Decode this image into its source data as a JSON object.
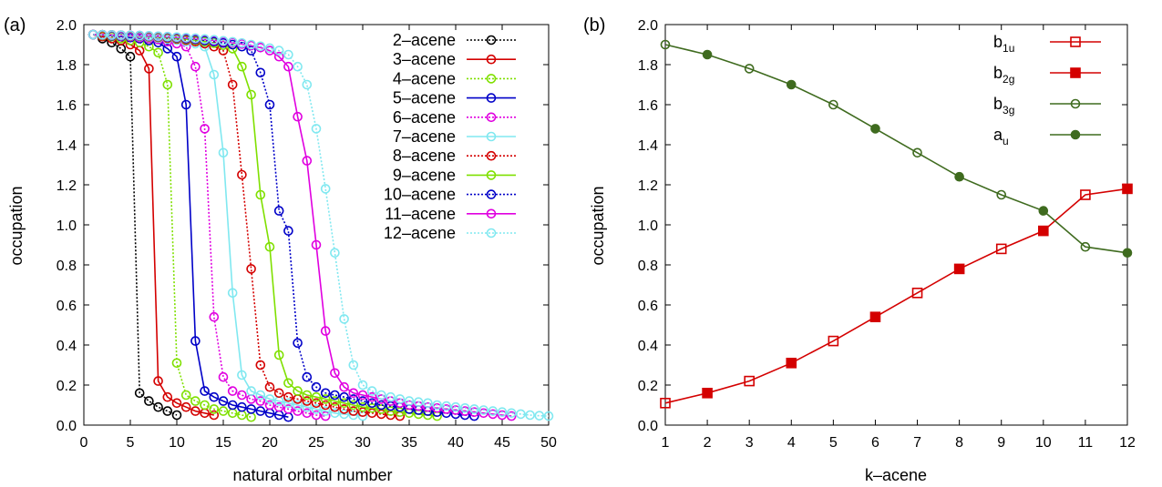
{
  "chart_data": [
    {
      "panel_label": "(a)",
      "type": "line",
      "xlabel": "natural orbital number",
      "ylabel": "occupation",
      "xlim": [
        0,
        50
      ],
      "ylim": [
        0.0,
        2.0
      ],
      "xticks": [
        "0",
        "5",
        "10",
        "15",
        "20",
        "25",
        "30",
        "35",
        "40",
        "45",
        "50"
      ],
      "yticks": [
        "0.0",
        "0.2",
        "0.4",
        "0.6",
        "0.8",
        "1.0",
        "1.2",
        "1.4",
        "1.6",
        "1.8",
        "2.0"
      ],
      "grid": false,
      "legend": "top-right",
      "marker": "open-circle",
      "series": [
        {
          "name": "2–acene",
          "color": "#000000",
          "dash": true,
          "x": [
            1,
            2,
            3,
            4,
            5,
            6,
            7,
            8,
            9,
            10
          ],
          "y": [
            1.95,
            1.93,
            1.91,
            1.88,
            1.84,
            0.16,
            0.12,
            0.09,
            0.07,
            0.05
          ]
        },
        {
          "name": "3–acene",
          "color": "#d40000",
          "dash": false,
          "x": [
            1,
            2,
            3,
            4,
            5,
            6,
            7,
            8,
            9,
            10,
            11,
            12,
            13,
            14
          ],
          "y": [
            1.95,
            1.94,
            1.93,
            1.92,
            1.9,
            1.87,
            1.78,
            0.22,
            0.14,
            0.11,
            0.09,
            0.07,
            0.06,
            0.05
          ]
        },
        {
          "name": "4–acene",
          "color": "#7fe000",
          "dash": true,
          "x": [
            1,
            2,
            3,
            4,
            5,
            6,
            7,
            8,
            9,
            10,
            11,
            12,
            13,
            14,
            15,
            16,
            17,
            18
          ],
          "y": [
            1.95,
            1.945,
            1.94,
            1.93,
            1.92,
            1.91,
            1.89,
            1.86,
            1.7,
            0.31,
            0.15,
            0.12,
            0.1,
            0.08,
            0.07,
            0.06,
            0.05,
            0.04
          ]
        },
        {
          "name": "5–acene",
          "color": "#0000c8",
          "dash": false,
          "x": [
            1,
            2,
            3,
            4,
            5,
            6,
            7,
            8,
            9,
            10,
            11,
            12,
            13,
            14,
            15,
            16,
            17,
            18,
            19,
            20,
            21,
            22
          ],
          "y": [
            1.95,
            1.948,
            1.944,
            1.94,
            1.935,
            1.93,
            1.92,
            1.91,
            1.88,
            1.84,
            1.6,
            0.42,
            0.17,
            0.14,
            0.12,
            0.1,
            0.09,
            0.08,
            0.07,
            0.06,
            0.05,
            0.04
          ]
        },
        {
          "name": "6–acene",
          "color": "#e000e0",
          "dash": true,
          "x": [
            1,
            2,
            3,
            4,
            5,
            6,
            7,
            8,
            9,
            10,
            11,
            12,
            13,
            14,
            15,
            16,
            17,
            18,
            19,
            20,
            21,
            22,
            23,
            24,
            25,
            26
          ],
          "y": [
            1.95,
            1.948,
            1.946,
            1.943,
            1.94,
            1.935,
            1.93,
            1.925,
            1.915,
            1.905,
            1.89,
            1.79,
            1.48,
            0.54,
            0.24,
            0.17,
            0.15,
            0.13,
            0.12,
            0.1,
            0.09,
            0.08,
            0.07,
            0.06,
            0.05,
            0.045
          ]
        },
        {
          "name": "7–acene",
          "color": "#80e8f0",
          "dash": false,
          "x": [
            1,
            2,
            3,
            4,
            5,
            6,
            7,
            8,
            9,
            10,
            11,
            12,
            13,
            14,
            15,
            16,
            17,
            18,
            19,
            20,
            21,
            22,
            23,
            24,
            25,
            26,
            27,
            28,
            29,
            30
          ],
          "y": [
            1.95,
            1.949,
            1.947,
            1.945,
            1.942,
            1.94,
            1.936,
            1.932,
            1.928,
            1.922,
            1.915,
            1.905,
            1.89,
            1.75,
            1.36,
            0.66,
            0.25,
            0.17,
            0.15,
            0.13,
            0.12,
            0.11,
            0.1,
            0.09,
            0.08,
            0.07,
            0.06,
            0.055,
            0.05,
            0.045
          ]
        },
        {
          "name": "8–acene",
          "color": "#d40000",
          "dash": true,
          "x": [
            1,
            2,
            3,
            4,
            5,
            6,
            7,
            8,
            9,
            10,
            11,
            12,
            13,
            14,
            15,
            16,
            17,
            18,
            19,
            20,
            21,
            22,
            23,
            24,
            25,
            26,
            27,
            28,
            29,
            30,
            31,
            32,
            33,
            34
          ],
          "y": [
            1.95,
            1.949,
            1.948,
            1.946,
            1.944,
            1.942,
            1.939,
            1.936,
            1.932,
            1.928,
            1.922,
            1.915,
            1.905,
            1.89,
            1.87,
            1.7,
            1.25,
            0.78,
            0.3,
            0.19,
            0.16,
            0.14,
            0.13,
            0.12,
            0.11,
            0.1,
            0.09,
            0.08,
            0.07,
            0.065,
            0.06,
            0.055,
            0.05,
            0.045
          ]
        },
        {
          "name": "9–acene",
          "color": "#7fe000",
          "dash": false,
          "x": [
            1,
            2,
            3,
            4,
            5,
            6,
            7,
            8,
            9,
            10,
            11,
            12,
            13,
            14,
            15,
            16,
            17,
            18,
            19,
            20,
            21,
            22,
            23,
            24,
            25,
            26,
            27,
            28,
            29,
            30,
            31,
            32,
            33,
            34,
            35,
            36,
            37,
            38
          ],
          "y": [
            1.95,
            1.949,
            1.948,
            1.947,
            1.945,
            1.943,
            1.941,
            1.938,
            1.935,
            1.931,
            1.927,
            1.922,
            1.915,
            1.907,
            1.897,
            1.88,
            1.79,
            1.65,
            1.15,
            0.89,
            0.35,
            0.21,
            0.17,
            0.15,
            0.14,
            0.13,
            0.12,
            0.11,
            0.1,
            0.09,
            0.085,
            0.08,
            0.07,
            0.065,
            0.06,
            0.055,
            0.05,
            0.045
          ]
        },
        {
          "name": "10–acene",
          "color": "#0000c8",
          "dash": true,
          "x": [
            1,
            2,
            3,
            4,
            5,
            6,
            7,
            8,
            9,
            10,
            11,
            12,
            13,
            14,
            15,
            16,
            17,
            18,
            19,
            20,
            21,
            22,
            23,
            24,
            25,
            26,
            27,
            28,
            29,
            30,
            31,
            32,
            33,
            34,
            35,
            36,
            37,
            38,
            39,
            40,
            41,
            42
          ],
          "y": [
            1.95,
            1.949,
            1.948,
            1.947,
            1.946,
            1.944,
            1.942,
            1.94,
            1.937,
            1.934,
            1.93,
            1.926,
            1.921,
            1.915,
            1.908,
            1.9,
            1.89,
            1.87,
            1.76,
            1.6,
            1.07,
            0.97,
            0.41,
            0.24,
            0.19,
            0.16,
            0.15,
            0.14,
            0.13,
            0.12,
            0.11,
            0.1,
            0.095,
            0.09,
            0.08,
            0.075,
            0.07,
            0.065,
            0.06,
            0.055,
            0.05,
            0.045
          ]
        },
        {
          "name": "11–acene",
          "color": "#e000e0",
          "dash": false,
          "x": [
            1,
            2,
            3,
            4,
            5,
            6,
            7,
            8,
            9,
            10,
            11,
            12,
            13,
            14,
            15,
            16,
            17,
            18,
            19,
            20,
            21,
            22,
            23,
            24,
            25,
            26,
            27,
            28,
            29,
            30,
            31,
            32,
            33,
            34,
            35,
            36,
            37,
            38,
            39,
            40,
            41,
            42,
            43,
            44,
            45,
            46
          ],
          "y": [
            1.95,
            1.949,
            1.948,
            1.947,
            1.946,
            1.945,
            1.943,
            1.941,
            1.939,
            1.936,
            1.933,
            1.93,
            1.926,
            1.921,
            1.916,
            1.91,
            1.903,
            1.895,
            1.885,
            1.87,
            1.84,
            1.79,
            1.54,
            1.32,
            0.9,
            0.47,
            0.26,
            0.19,
            0.16,
            0.15,
            0.14,
            0.13,
            0.12,
            0.11,
            0.1,
            0.095,
            0.09,
            0.085,
            0.08,
            0.075,
            0.07,
            0.065,
            0.06,
            0.055,
            0.05,
            0.045
          ]
        },
        {
          "name": "12–acene",
          "color": "#80e8f0",
          "dash": true,
          "x": [
            1,
            2,
            3,
            4,
            5,
            6,
            7,
            8,
            9,
            10,
            11,
            12,
            13,
            14,
            15,
            16,
            17,
            18,
            19,
            20,
            21,
            22,
            23,
            24,
            25,
            26,
            27,
            28,
            29,
            30,
            31,
            32,
            33,
            34,
            35,
            36,
            37,
            38,
            39,
            40,
            41,
            42,
            43,
            44,
            45,
            46,
            47,
            48,
            49,
            50
          ],
          "y": [
            1.95,
            1.949,
            1.948,
            1.947,
            1.946,
            1.945,
            1.944,
            1.942,
            1.94,
            1.938,
            1.935,
            1.932,
            1.928,
            1.924,
            1.919,
            1.914,
            1.908,
            1.9,
            1.892,
            1.882,
            1.87,
            1.85,
            1.79,
            1.7,
            1.48,
            1.18,
            0.86,
            0.53,
            0.3,
            0.2,
            0.17,
            0.15,
            0.14,
            0.13,
            0.12,
            0.115,
            0.11,
            0.1,
            0.095,
            0.09,
            0.085,
            0.08,
            0.075,
            0.07,
            0.065,
            0.06,
            0.055,
            0.05,
            0.047,
            0.045
          ]
        }
      ]
    },
    {
      "panel_label": "(b)",
      "type": "line",
      "xlabel": "k–acene",
      "ylabel": "occupation",
      "xlim": [
        1,
        12
      ],
      "ylim": [
        0.0,
        2.0
      ],
      "xticks": [
        "1",
        "2",
        "3",
        "4",
        "5",
        "6",
        "7",
        "8",
        "9",
        "10",
        "11",
        "12"
      ],
      "yticks": [
        "0.0",
        "0.2",
        "0.4",
        "0.6",
        "0.8",
        "1.0",
        "1.2",
        "1.4",
        "1.6",
        "1.8",
        "2.0"
      ],
      "grid": false,
      "legend": "top-right",
      "series": [
        {
          "name": "b",
          "sub": "1u",
          "color": "#d40000",
          "marker": "open-square",
          "x": [
            1,
            2,
            3,
            4,
            5,
            6,
            7,
            8,
            9,
            10,
            11,
            12
          ],
          "y": [
            0.11,
            null,
            0.22,
            null,
            0.42,
            null,
            0.66,
            null,
            0.88,
            null,
            1.15,
            null
          ]
        },
        {
          "name": "b",
          "sub": "2g",
          "color": "#d40000",
          "marker": "filled-square",
          "x": [
            1,
            2,
            3,
            4,
            5,
            6,
            7,
            8,
            9,
            10,
            11,
            12
          ],
          "y": [
            null,
            0.16,
            null,
            0.31,
            null,
            0.54,
            null,
            0.78,
            null,
            0.97,
            null,
            1.18
          ]
        },
        {
          "name": "b",
          "sub": "3g",
          "color": "#3f6b1f",
          "marker": "open-circle",
          "x": [
            1,
            2,
            3,
            4,
            5,
            6,
            7,
            8,
            9,
            10,
            11,
            12
          ],
          "y": [
            1.9,
            null,
            1.78,
            null,
            1.6,
            null,
            1.36,
            null,
            1.15,
            null,
            0.89,
            null
          ]
        },
        {
          "name": "a",
          "sub": "u",
          "color": "#3f6b1f",
          "marker": "filled-circle",
          "x": [
            1,
            2,
            3,
            4,
            5,
            6,
            7,
            8,
            9,
            10,
            11,
            12
          ],
          "y": [
            null,
            1.85,
            null,
            1.7,
            null,
            1.48,
            null,
            1.24,
            null,
            1.07,
            null,
            0.86
          ]
        }
      ],
      "connecting_lines": [
        {
          "color": "#d40000",
          "y": [
            0.11,
            0.16,
            0.22,
            0.31,
            0.42,
            0.54,
            0.66,
            0.78,
            0.88,
            0.97,
            1.15,
            1.18
          ]
        },
        {
          "color": "#3f6b1f",
          "y": [
            1.9,
            1.85,
            1.78,
            1.7,
            1.6,
            1.48,
            1.36,
            1.24,
            1.15,
            1.07,
            0.89,
            0.86
          ]
        }
      ]
    }
  ]
}
